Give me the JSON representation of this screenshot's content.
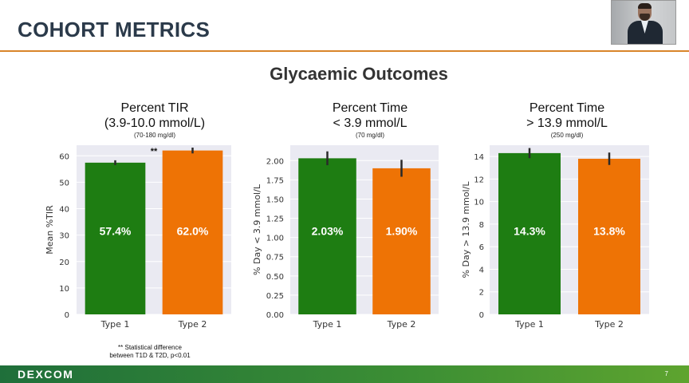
{
  "slide": {
    "title": "COHORT METRICS",
    "section_heading": "Glycaemic Outcomes",
    "footnote_line1": "** Statistical difference",
    "footnote_line2": "between T1D & T2D, p<0.01",
    "brand": "DEXCOM",
    "page_number": "7"
  },
  "colors": {
    "type1": "#1e7d12",
    "type2": "#ee7305",
    "plot_bg": "#eaeaf2",
    "grid": "#ffffff",
    "rule": "#d9852a"
  },
  "chart_data": [
    {
      "type": "bar",
      "title_line1": "Percent TIR",
      "title_line2": "(3.9-10.0 mmol/L)",
      "subtitle": "(70-180 mg/dl)",
      "categories": [
        "Type 1",
        "Type 2"
      ],
      "values": [
        57.4,
        62.0
      ],
      "errors": [
        0.9,
        1.1
      ],
      "value_labels": [
        "57.4%",
        "62.0%"
      ],
      "ylabel": "Mean %TIR",
      "ylim": [
        0,
        64
      ],
      "yticks": [
        0,
        10,
        20,
        30,
        40,
        50,
        60
      ],
      "ytick_labels": [
        "0",
        "10",
        "20",
        "30",
        "40",
        "50",
        "60"
      ],
      "annotation": "**",
      "grid": true
    },
    {
      "type": "bar",
      "title_line1": "Percent Time",
      "title_line2": "< 3.9 mmol/L",
      "subtitle": "(70 mg/dl)",
      "categories": [
        "Type 1",
        "Type 2"
      ],
      "values": [
        2.03,
        1.9
      ],
      "errors": [
        0.09,
        0.11
      ],
      "value_labels": [
        "2.03%",
        "1.90%"
      ],
      "ylabel": "% Day < 3.9 mmol/L",
      "ylim": [
        0,
        2.2
      ],
      "yticks": [
        0,
        0.25,
        0.5,
        0.75,
        1.0,
        1.25,
        1.5,
        1.75,
        2.0
      ],
      "ytick_labels": [
        "0.00",
        "0.25",
        "0.50",
        "0.75",
        "1.00",
        "1.25",
        "1.50",
        "1.75",
        "2.00"
      ],
      "annotation": "",
      "grid": true
    },
    {
      "type": "bar",
      "title_line1": "Percent Time",
      "title_line2": "> 13.9 mmol/L",
      "subtitle": "(250 mg/dl)",
      "categories": [
        "Type 1",
        "Type 2"
      ],
      "values": [
        14.3,
        13.8
      ],
      "errors": [
        0.45,
        0.55
      ],
      "value_labels": [
        "14.3%",
        "13.8%"
      ],
      "ylabel": "% Day > 13.9 mmol/L",
      "ylim": [
        0,
        15
      ],
      "yticks": [
        0,
        2,
        4,
        6,
        8,
        10,
        12,
        14
      ],
      "ytick_labels": [
        "0",
        "2",
        "4",
        "6",
        "8",
        "10",
        "12",
        "14"
      ],
      "annotation": "",
      "grid": true
    }
  ]
}
